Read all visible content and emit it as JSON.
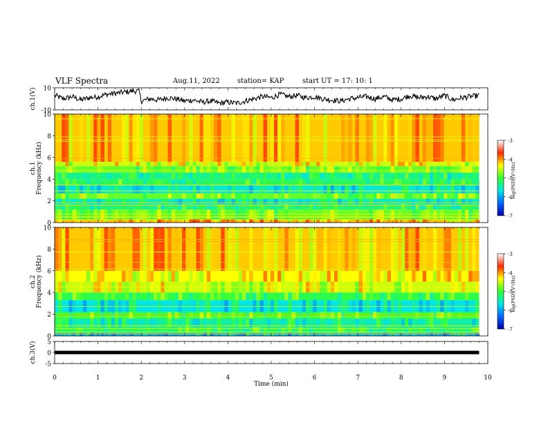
{
  "header": {
    "title": "VLF Spectra",
    "date": "Aug.11, 2022",
    "station": "station= KAP",
    "start": "start  UT  =   17: 10: 1"
  },
  "chart_data": [
    {
      "type": "line",
      "panel": "ch1-waveform",
      "ylabel": "ch.1(V)",
      "ylim": [
        -10,
        10
      ],
      "yticks": [
        "10",
        "-10"
      ],
      "xlim": [
        0,
        10
      ],
      "x_end": 9.8,
      "series": [
        {
          "x": [
            0,
            0.2,
            0.4,
            0.6,
            0.8,
            1.0,
            1.2,
            1.4,
            1.6,
            1.8,
            1.95,
            2.0,
            2.2,
            2.4,
            2.6,
            2.8,
            3.0,
            3.2,
            3.4,
            3.6,
            3.8,
            4.0,
            4.2,
            4.4,
            4.6,
            4.8,
            5.0,
            5.2,
            5.4,
            5.6,
            5.8,
            6.0,
            6.2,
            6.4,
            6.6,
            6.8,
            7.0,
            7.2,
            7.4,
            7.6,
            7.8,
            8.0,
            8.2,
            8.4,
            8.6,
            8.8,
            9.0,
            9.2,
            9.4,
            9.6,
            9.8
          ],
          "values": [
            3,
            0,
            2,
            -1,
            1,
            2,
            4,
            5,
            6,
            7,
            7,
            -2,
            0,
            -1,
            1,
            0,
            -2,
            -1,
            -3,
            -2,
            -4,
            -3,
            -4,
            -2,
            0,
            2,
            1,
            4,
            2,
            3,
            1,
            2,
            0,
            -1,
            -2,
            0,
            1,
            2,
            0,
            2,
            -1,
            0,
            3,
            1,
            2,
            0,
            3,
            -1,
            1,
            2,
            3
          ]
        }
      ]
    },
    {
      "type": "heatmap",
      "panel": "ch1-spectrogram",
      "ylabel": "ch.1\nFrequency  (kHz)",
      "ylim": [
        0,
        10
      ],
      "yticks": [
        "0",
        "2",
        "4",
        "6",
        "8",
        "10"
      ],
      "colorbar": {
        "label": "log(PSD)(V²/Hz)",
        "ticks": [
          "-3",
          "-4",
          "-5",
          "-6",
          "-7"
        ],
        "range": [
          -7,
          -3
        ]
      },
      "bands": [
        {
          "from": 0.0,
          "to": 0.3,
          "level": -3.6
        },
        {
          "from": 0.3,
          "to": 1.2,
          "level": -4.4
        },
        {
          "from": 1.2,
          "to": 1.7,
          "level": -4.9
        },
        {
          "from": 1.7,
          "to": 2.2,
          "level": -5.2
        },
        {
          "from": 2.2,
          "to": 2.7,
          "level": -4.4
        },
        {
          "from": 2.7,
          "to": 3.5,
          "level": -5.3
        },
        {
          "from": 3.5,
          "to": 4.0,
          "level": -4.8
        },
        {
          "from": 4.0,
          "to": 4.6,
          "level": -5.0
        },
        {
          "from": 4.6,
          "to": 5.2,
          "level": -4.4
        },
        {
          "from": 5.2,
          "to": 5.6,
          "level": -4.0
        },
        {
          "from": 5.6,
          "to": 10.0,
          "level": -3.6
        }
      ]
    },
    {
      "type": "heatmap",
      "panel": "ch2-spectrogram",
      "ylabel": "ch.2\nFrequency  (kHz)",
      "ylim": [
        0,
        10
      ],
      "yticks": [
        "0",
        "2",
        "4",
        "6",
        "8",
        "10"
      ],
      "colorbar": {
        "label": "log(PSD)(V²/Hz)",
        "ticks": [
          "-3",
          "-4",
          "-5",
          "-6",
          "-7"
        ],
        "range": [
          -7,
          -3
        ]
      },
      "bands": [
        {
          "from": 0.0,
          "to": 0.3,
          "level": -5.6
        },
        {
          "from": 0.3,
          "to": 0.8,
          "level": -4.8
        },
        {
          "from": 0.8,
          "to": 1.6,
          "level": -5.1
        },
        {
          "from": 1.6,
          "to": 2.2,
          "level": -4.6
        },
        {
          "from": 2.2,
          "to": 3.3,
          "level": -5.4
        },
        {
          "from": 3.3,
          "to": 4.0,
          "level": -4.7
        },
        {
          "from": 4.0,
          "to": 5.0,
          "level": -4.0
        },
        {
          "from": 5.0,
          "to": 6.0,
          "level": -3.8
        },
        {
          "from": 6.0,
          "to": 10.0,
          "level": -3.6
        }
      ]
    },
    {
      "type": "line",
      "panel": "ch3-waveform",
      "ylabel": "ch.3(V)",
      "ylim": [
        -5,
        5
      ],
      "yticks": [
        "5",
        "0",
        "-5"
      ],
      "xlim": [
        0,
        10
      ],
      "x_end": 9.8,
      "series": [
        {
          "x": [
            0,
            9.8
          ],
          "values": [
            0,
            0
          ]
        }
      ]
    }
  ],
  "time_axis": {
    "label": "Time  (min)",
    "ticks": [
      "0",
      "1",
      "2",
      "3",
      "4",
      "5",
      "6",
      "7",
      "8",
      "9",
      "10"
    ],
    "range": [
      0,
      10
    ]
  },
  "colors": {
    "line": "#000000",
    "colormap": [
      "#0000aa",
      "#0066ff",
      "#00e5e5",
      "#33ff33",
      "#ffff00",
      "#ff2a00",
      "#ffffff"
    ]
  }
}
